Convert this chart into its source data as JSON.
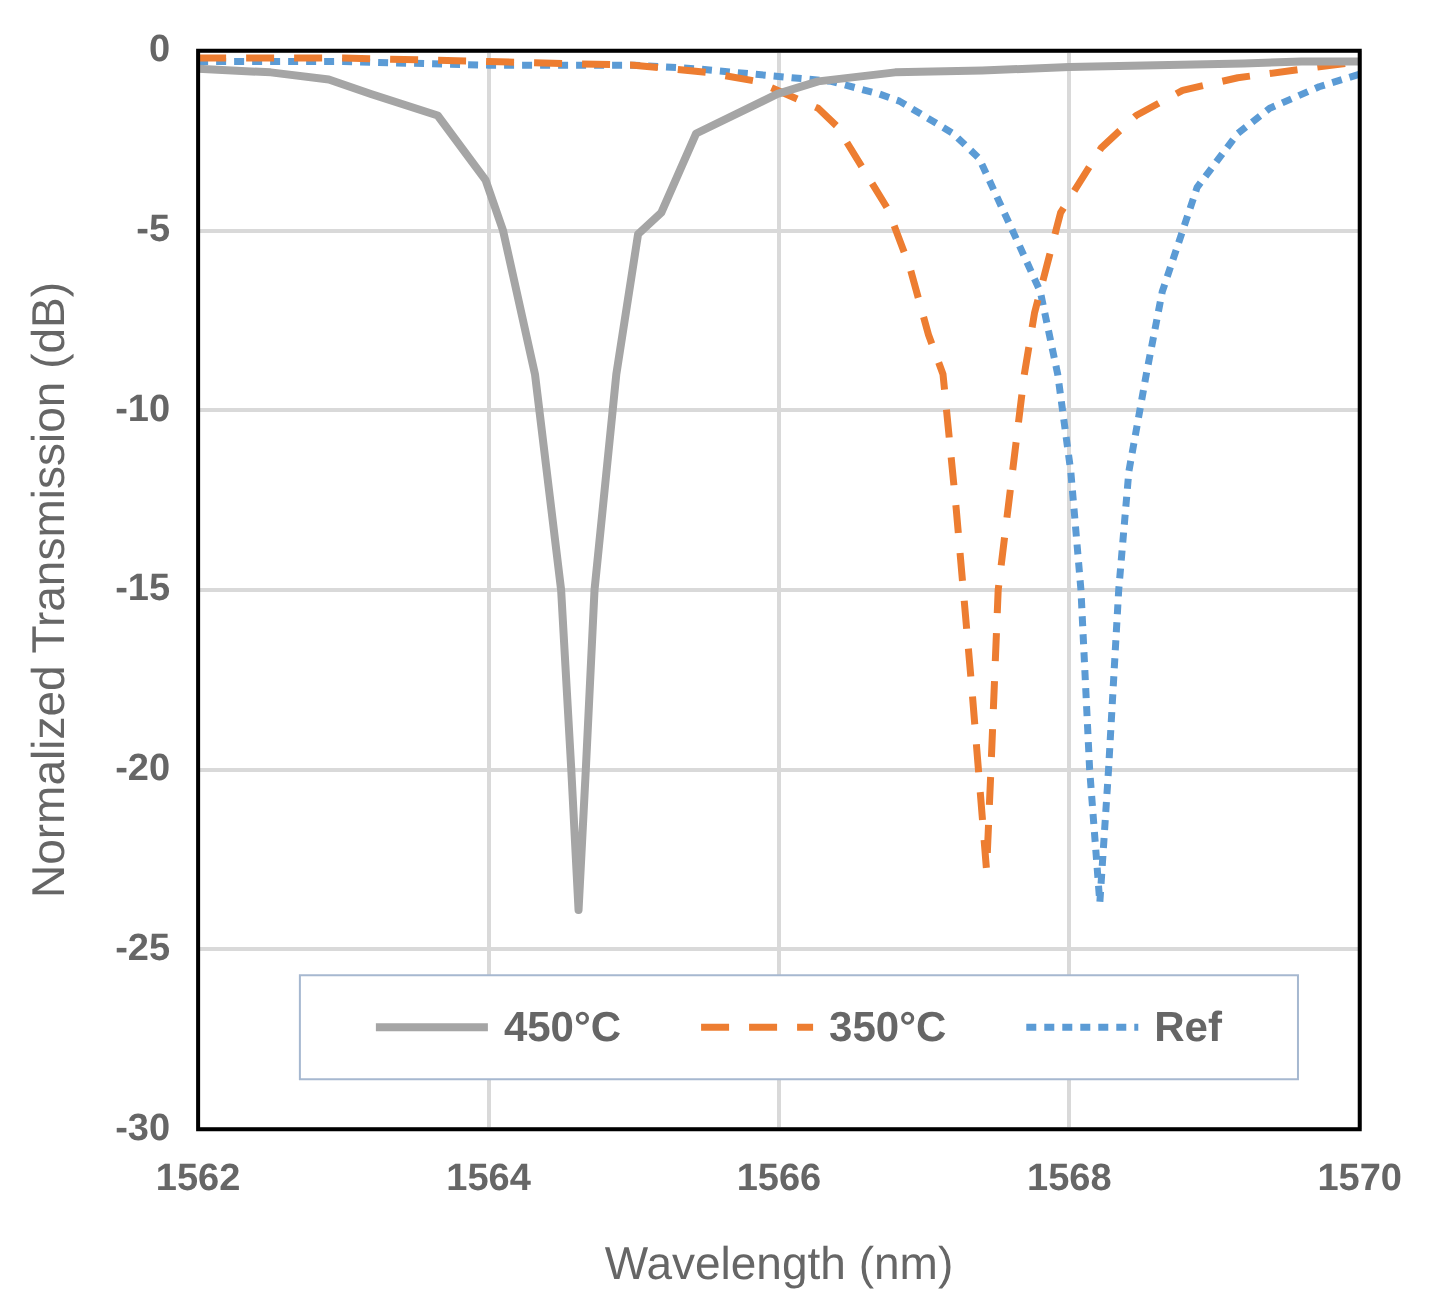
{
  "chart_data": {
    "type": "line",
    "xlabel": "Wavelength (nm)",
    "ylabel": "Normalized Transmission (dB)",
    "xlim": [
      1562,
      1570
    ],
    "xticks": [
      1562,
      1564,
      1566,
      1568,
      1570
    ],
    "ylim": [
      -30,
      0
    ],
    "yticks": [
      -30,
      -25,
      -20,
      -15,
      -10,
      -5,
      0
    ],
    "grid": true,
    "legend": "bottom",
    "marker": "none",
    "series": [
      {
        "name": "450°C",
        "color": "#a5a5a5",
        "line_style": "solid",
        "x": [
          1562,
          1562.5,
          1562.9,
          1563.19,
          1563.65,
          1563.98,
          1564.1,
          1564.32,
          1564.5,
          1564.57,
          1564.62,
          1564.67,
          1564.73,
          1564.88,
          1565.03,
          1565.19,
          1565.43,
          1565.99,
          1566.27,
          1566.8,
          1567.4,
          1568,
          1568.6,
          1569.2,
          1569.6,
          1570
        ],
        "values": [
          -0.5,
          -0.6,
          -0.8,
          -1.2,
          -1.8,
          -3.6,
          -5,
          -9,
          -15,
          -20,
          -23.9,
          -20,
          -15,
          -9,
          -5.1,
          -4.5,
          -2.3,
          -1.2,
          -0.85,
          -0.6,
          -0.55,
          -0.45,
          -0.4,
          -0.35,
          -0.3,
          -0.3
        ]
      },
      {
        "name": "350°C",
        "color": "#ed7d31",
        "line_style": "dashed",
        "x": [
          1562,
          1563,
          1564,
          1565,
          1565.5,
          1565.85,
          1566.27,
          1566.4,
          1566.75,
          1566.9,
          1567.03,
          1567.13,
          1567.22,
          1567.33,
          1567.43,
          1567.46,
          1567.51,
          1567.69,
          1567.76,
          1567.94,
          1568.22,
          1568.46,
          1568.78,
          1569.16,
          1569.62,
          1570
        ],
        "values": [
          -0.2,
          -0.2,
          -0.3,
          -0.4,
          -0.6,
          -0.85,
          -1.6,
          -2.1,
          -4.4,
          -6,
          -7.9,
          -9,
          -12.7,
          -17.8,
          -22.8,
          -20,
          -15,
          -9,
          -7.3,
          -4.5,
          -2.7,
          -1.8,
          -1.1,
          -0.75,
          -0.5,
          -0.3
        ]
      },
      {
        "name": "Ref",
        "color": "#5b9bd5",
        "line_style": "dotted",
        "x": [
          1562,
          1563,
          1564,
          1565,
          1565.43,
          1566.36,
          1566.69,
          1566.83,
          1567.2,
          1567.38,
          1567.62,
          1567.8,
          1567.92,
          1568.01,
          1568.08,
          1568.14,
          1568.21,
          1568.27,
          1568.34,
          1568.41,
          1568.53,
          1568.64,
          1568.88,
          1569.16,
          1569.38,
          1569.72,
          1570
        ],
        "values": [
          -0.3,
          -0.3,
          -0.4,
          -0.4,
          -0.5,
          -0.85,
          -1.2,
          -1.4,
          -2.3,
          -3,
          -5.1,
          -6.7,
          -9,
          -11.7,
          -15,
          -20,
          -23.7,
          -20,
          -15,
          -11.7,
          -9,
          -6.7,
          -3.8,
          -2.3,
          -1.6,
          -1,
          -0.65
        ]
      }
    ]
  }
}
